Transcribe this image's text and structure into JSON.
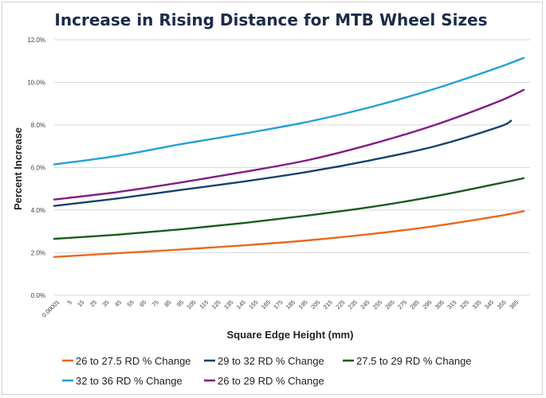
{
  "chart_data": {
    "type": "line",
    "title": "Increase in Rising Distance for MTB Wheel Sizes",
    "xlabel": "Square Edge Height (mm)",
    "ylabel": "Percent Increase",
    "ylim": [
      0,
      12
    ],
    "y_ticks": [
      "0.0%",
      "2.0%",
      "4.0%",
      "6.0%",
      "8.0%",
      "10.0%",
      "12.0%"
    ],
    "x_ticks": [
      "0.00001",
      "5",
      "15",
      "25",
      "35",
      "45",
      "55",
      "65",
      "75",
      "85",
      "95",
      "105",
      "115",
      "125",
      "135",
      "145",
      "155",
      "165",
      "175",
      "185",
      "195",
      "205",
      "215",
      "225",
      "235",
      "245",
      "255",
      "265",
      "275",
      "285",
      "295",
      "305",
      "315",
      "325",
      "335",
      "345",
      "355",
      "365"
    ],
    "grid": true,
    "legend_position": "bottom",
    "series": [
      {
        "name": "26 to 27.5 RD % Change",
        "color": "#e8691e",
        "x": [
          0,
          50,
          100,
          150,
          200,
          250,
          300,
          350,
          370
        ],
        "values": [
          1.8,
          1.98,
          2.15,
          2.35,
          2.58,
          2.88,
          3.25,
          3.72,
          3.95
        ]
      },
      {
        "name": "29 to 32 RD % Change",
        "color": "#17406d",
        "x": [
          0,
          50,
          100,
          150,
          200,
          250,
          300,
          350,
          360
        ],
        "values": [
          4.2,
          4.55,
          4.95,
          5.35,
          5.8,
          6.35,
          7.0,
          7.9,
          8.2
        ]
      },
      {
        "name": "27.5 to 29 RD % Change",
        "color": "#1a5c1a",
        "x": [
          0,
          50,
          100,
          150,
          200,
          250,
          300,
          350,
          370
        ],
        "values": [
          2.65,
          2.85,
          3.1,
          3.4,
          3.75,
          4.15,
          4.65,
          5.25,
          5.5
        ]
      },
      {
        "name": "32 to 36 RD % Change",
        "color": "#23a0d8",
        "x": [
          0,
          50,
          100,
          150,
          200,
          250,
          300,
          350,
          370
        ],
        "values": [
          6.15,
          6.55,
          7.1,
          7.6,
          8.15,
          8.85,
          9.7,
          10.7,
          11.15
        ]
      },
      {
        "name": "26 to 29 RD % Change",
        "color": "#861a86",
        "x": [
          0,
          50,
          100,
          150,
          200,
          250,
          300,
          350,
          370
        ],
        "values": [
          4.5,
          4.85,
          5.3,
          5.8,
          6.35,
          7.1,
          8.0,
          9.1,
          9.65
        ]
      }
    ]
  }
}
